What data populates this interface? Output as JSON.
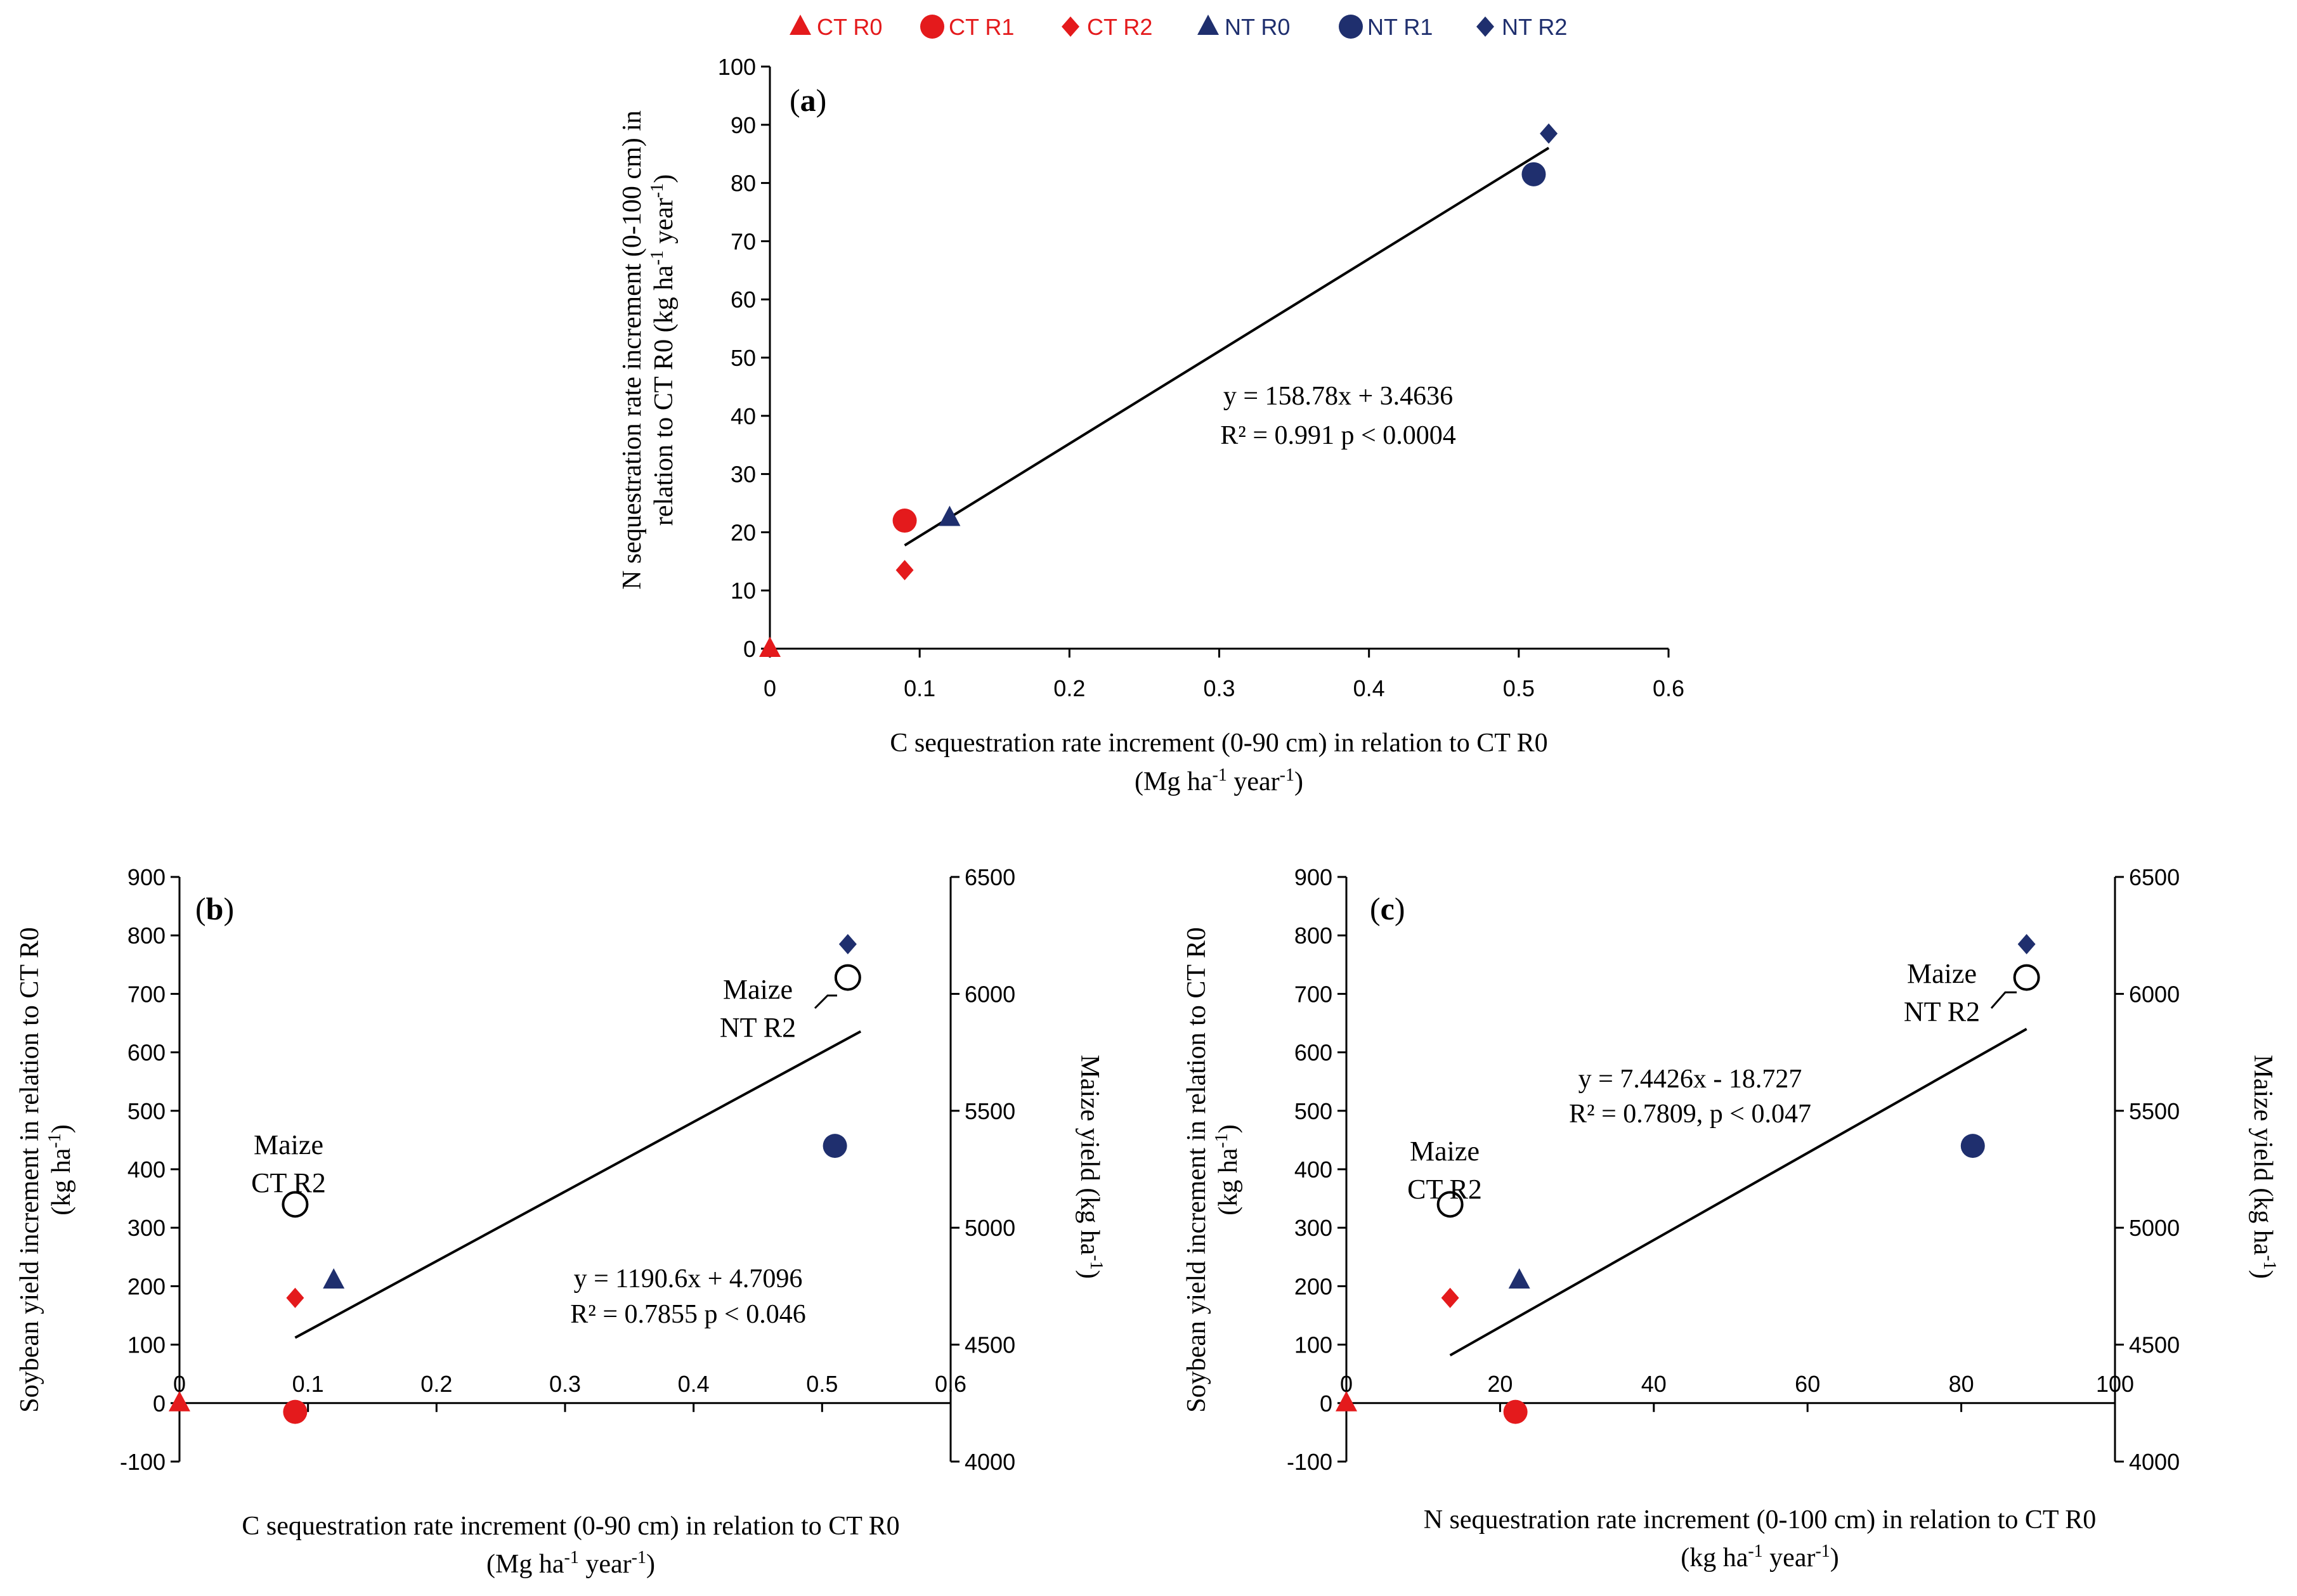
{
  "legend": [
    {
      "label": "CT R0",
      "marker": "triangle",
      "color": "#e41a1c"
    },
    {
      "label": "CT R1",
      "marker": "circle",
      "color": "#e41a1c"
    },
    {
      "label": "CT R2",
      "marker": "diamond",
      "color": "#e41a1c"
    },
    {
      "label": "NT R0",
      "marker": "triangle",
      "color": "#1f2f6e"
    },
    {
      "label": "NT R1",
      "marker": "circle",
      "color": "#1f2f6e"
    },
    {
      "label": "NT R2",
      "marker": "diamond",
      "color": "#1f2f6e"
    }
  ],
  "colors": {
    "ct": "#e41a1c",
    "nt": "#1f2f6e",
    "axis": "#000000"
  },
  "chart_data": [
    {
      "id": "a",
      "type": "scatter",
      "panel_label": "a",
      "xlim": [
        0,
        0.6
      ],
      "ylim": [
        0,
        100
      ],
      "xticks": [
        "0",
        "0.1",
        "0.2",
        "0.3",
        "0.4",
        "0.5",
        "0.6"
      ],
      "yticks": [
        "0",
        "10",
        "20",
        "30",
        "40",
        "50",
        "60",
        "70",
        "80",
        "90",
        "100"
      ],
      "xlabel_line1": "C sequestration rate increment (0-90 cm) in relation to CT R0",
      "xlabel_line2_pre": "(Mg ha",
      "xlabel_line2_sup1": "-1",
      "xlabel_line2_mid": " year",
      "xlabel_line2_sup2": "-1",
      "xlabel_line2_post": ")",
      "ylabel_line1": "N sequestration rate increment  (0-100 cm) in",
      "ylabel_line2_pre": "relation to CT R0  (kg ha",
      "ylabel_line2_sup1": "-1",
      "ylabel_line2_mid": " year",
      "ylabel_line2_sup2": "-1",
      "ylabel_line2_post": ")",
      "points": [
        {
          "label": "CT R0",
          "x": 0.0,
          "y": 0.0
        },
        {
          "label": "CT R1",
          "x": 0.09,
          "y": 22.0
        },
        {
          "label": "CT R2",
          "x": 0.09,
          "y": 13.5
        },
        {
          "label": "NT R0",
          "x": 0.12,
          "y": 22.5
        },
        {
          "label": "NT R1",
          "x": 0.51,
          "y": 81.5
        },
        {
          "label": "NT R2",
          "x": 0.52,
          "y": 88.5
        }
      ],
      "trend": {
        "slope": 158.78,
        "intercept": 3.4636,
        "x_range": [
          0.09,
          0.52
        ]
      },
      "equation": "y = 158.78x + 3.4636",
      "r2_text": "R² = 0.991    p < 0.0004"
    },
    {
      "id": "b",
      "type": "scatter",
      "panel_label": "b",
      "xlim": [
        0,
        0.6
      ],
      "ylim": [
        -100,
        900
      ],
      "y2lim": [
        4000,
        6500
      ],
      "xticks": [
        "0",
        "0.1",
        "0.2",
        "0.3",
        "0.4",
        "0.5",
        "0.6"
      ],
      "yticks": [
        "-100",
        "0",
        "100",
        "200",
        "300",
        "400",
        "500",
        "600",
        "700",
        "800",
        "900"
      ],
      "y2ticks": [
        "4000",
        "4500",
        "5000",
        "5500",
        "6000",
        "6500"
      ],
      "xlabel_line1": "C sequestration rate increment (0-90 cm) in relation to CT R0",
      "xlabel_line2_pre": "(Mg ha",
      "xlabel_line2_sup1": "-1",
      "xlabel_line2_mid": " year",
      "xlabel_line2_sup2": "-1",
      "xlabel_line2_post": ")",
      "ylabel_line1": "Soybean yield increment in relation to CT R0",
      "ylabel_line2_pre": "(kg ha",
      "ylabel_line2_sup1": "-1",
      "ylabel_line2_post": ")",
      "y2label_pre": "Maize yield (kg ha",
      "y2label_sup": "-1",
      "y2label_post": ")",
      "points": [
        {
          "label": "CT R0",
          "x": 0.0,
          "y": 0
        },
        {
          "label": "CT R1",
          "x": 0.09,
          "y": -15
        },
        {
          "label": "CT R2",
          "x": 0.09,
          "y": 180
        },
        {
          "label": "NT R0",
          "x": 0.12,
          "y": 210
        },
        {
          "label": "NT R1",
          "x": 0.51,
          "y": 440
        },
        {
          "label": "NT R2",
          "x": 0.52,
          "y": 785
        }
      ],
      "maize_points": [
        {
          "label_line1": "Maize",
          "label_line2": "CT R2",
          "x": 0.09,
          "y": 5100
        },
        {
          "label_line1": "Maize",
          "label_line2": "NT R2",
          "x": 0.52,
          "y": 6070
        }
      ],
      "trend": {
        "slope": 1190.6,
        "intercept": 4.7096,
        "x_range": [
          0.09,
          0.53
        ]
      },
      "equation": "y = 1190.6x + 4.7096",
      "r2_text": "R² = 0.7855    p < 0.046"
    },
    {
      "id": "c",
      "type": "scatter",
      "panel_label": "c",
      "xlim": [
        0,
        100
      ],
      "ylim": [
        -100,
        900
      ],
      "y2lim": [
        4000,
        6500
      ],
      "xticks": [
        "0",
        "20",
        "40",
        "60",
        "80",
        "100"
      ],
      "yticks": [
        "-100",
        "0",
        "100",
        "200",
        "300",
        "400",
        "500",
        "600",
        "700",
        "800",
        "900"
      ],
      "y2ticks": [
        "4000",
        "4500",
        "5000",
        "5500",
        "6000",
        "6500"
      ],
      "xlabel_line1": "N sequestration rate increment (0-100 cm) in relation to CT R0",
      "xlabel_line2_pre": "(kg ha",
      "xlabel_line2_sup1": "-1",
      "xlabel_line2_mid": " year",
      "xlabel_line2_sup2": "-1",
      "xlabel_line2_post": ")",
      "ylabel_line1": "Soybean yield increment in relation to CT R0",
      "ylabel_line2_pre": "(kg ha",
      "ylabel_line2_sup1": "-1",
      "ylabel_line2_post": ")",
      "y2label_pre": "Maize yield (kg ha",
      "y2label_sup": "-1",
      "y2label_post": ")",
      "points": [
        {
          "label": "CT R0",
          "x": 0.0,
          "y": 0
        },
        {
          "label": "CT R1",
          "x": 22.0,
          "y": -15
        },
        {
          "label": "CT R2",
          "x": 13.5,
          "y": 180
        },
        {
          "label": "NT R0",
          "x": 22.5,
          "y": 210
        },
        {
          "label": "NT R1",
          "x": 81.5,
          "y": 440
        },
        {
          "label": "NT R2",
          "x": 88.5,
          "y": 785
        }
      ],
      "maize_points": [
        {
          "label_line1": "Maize",
          "label_line2": "CT R2",
          "x": 13.5,
          "y": 5100
        },
        {
          "label_line1": "Maize",
          "label_line2": "NT R2",
          "x": 88.5,
          "y": 6070
        }
      ],
      "trend": {
        "slope": 7.4426,
        "intercept": -18.727,
        "x_range": [
          13.5,
          88.5
        ]
      },
      "equation": "y = 7.4426x - 18.727",
      "r2_text": "R² = 0.7809, p < 0.047"
    }
  ]
}
